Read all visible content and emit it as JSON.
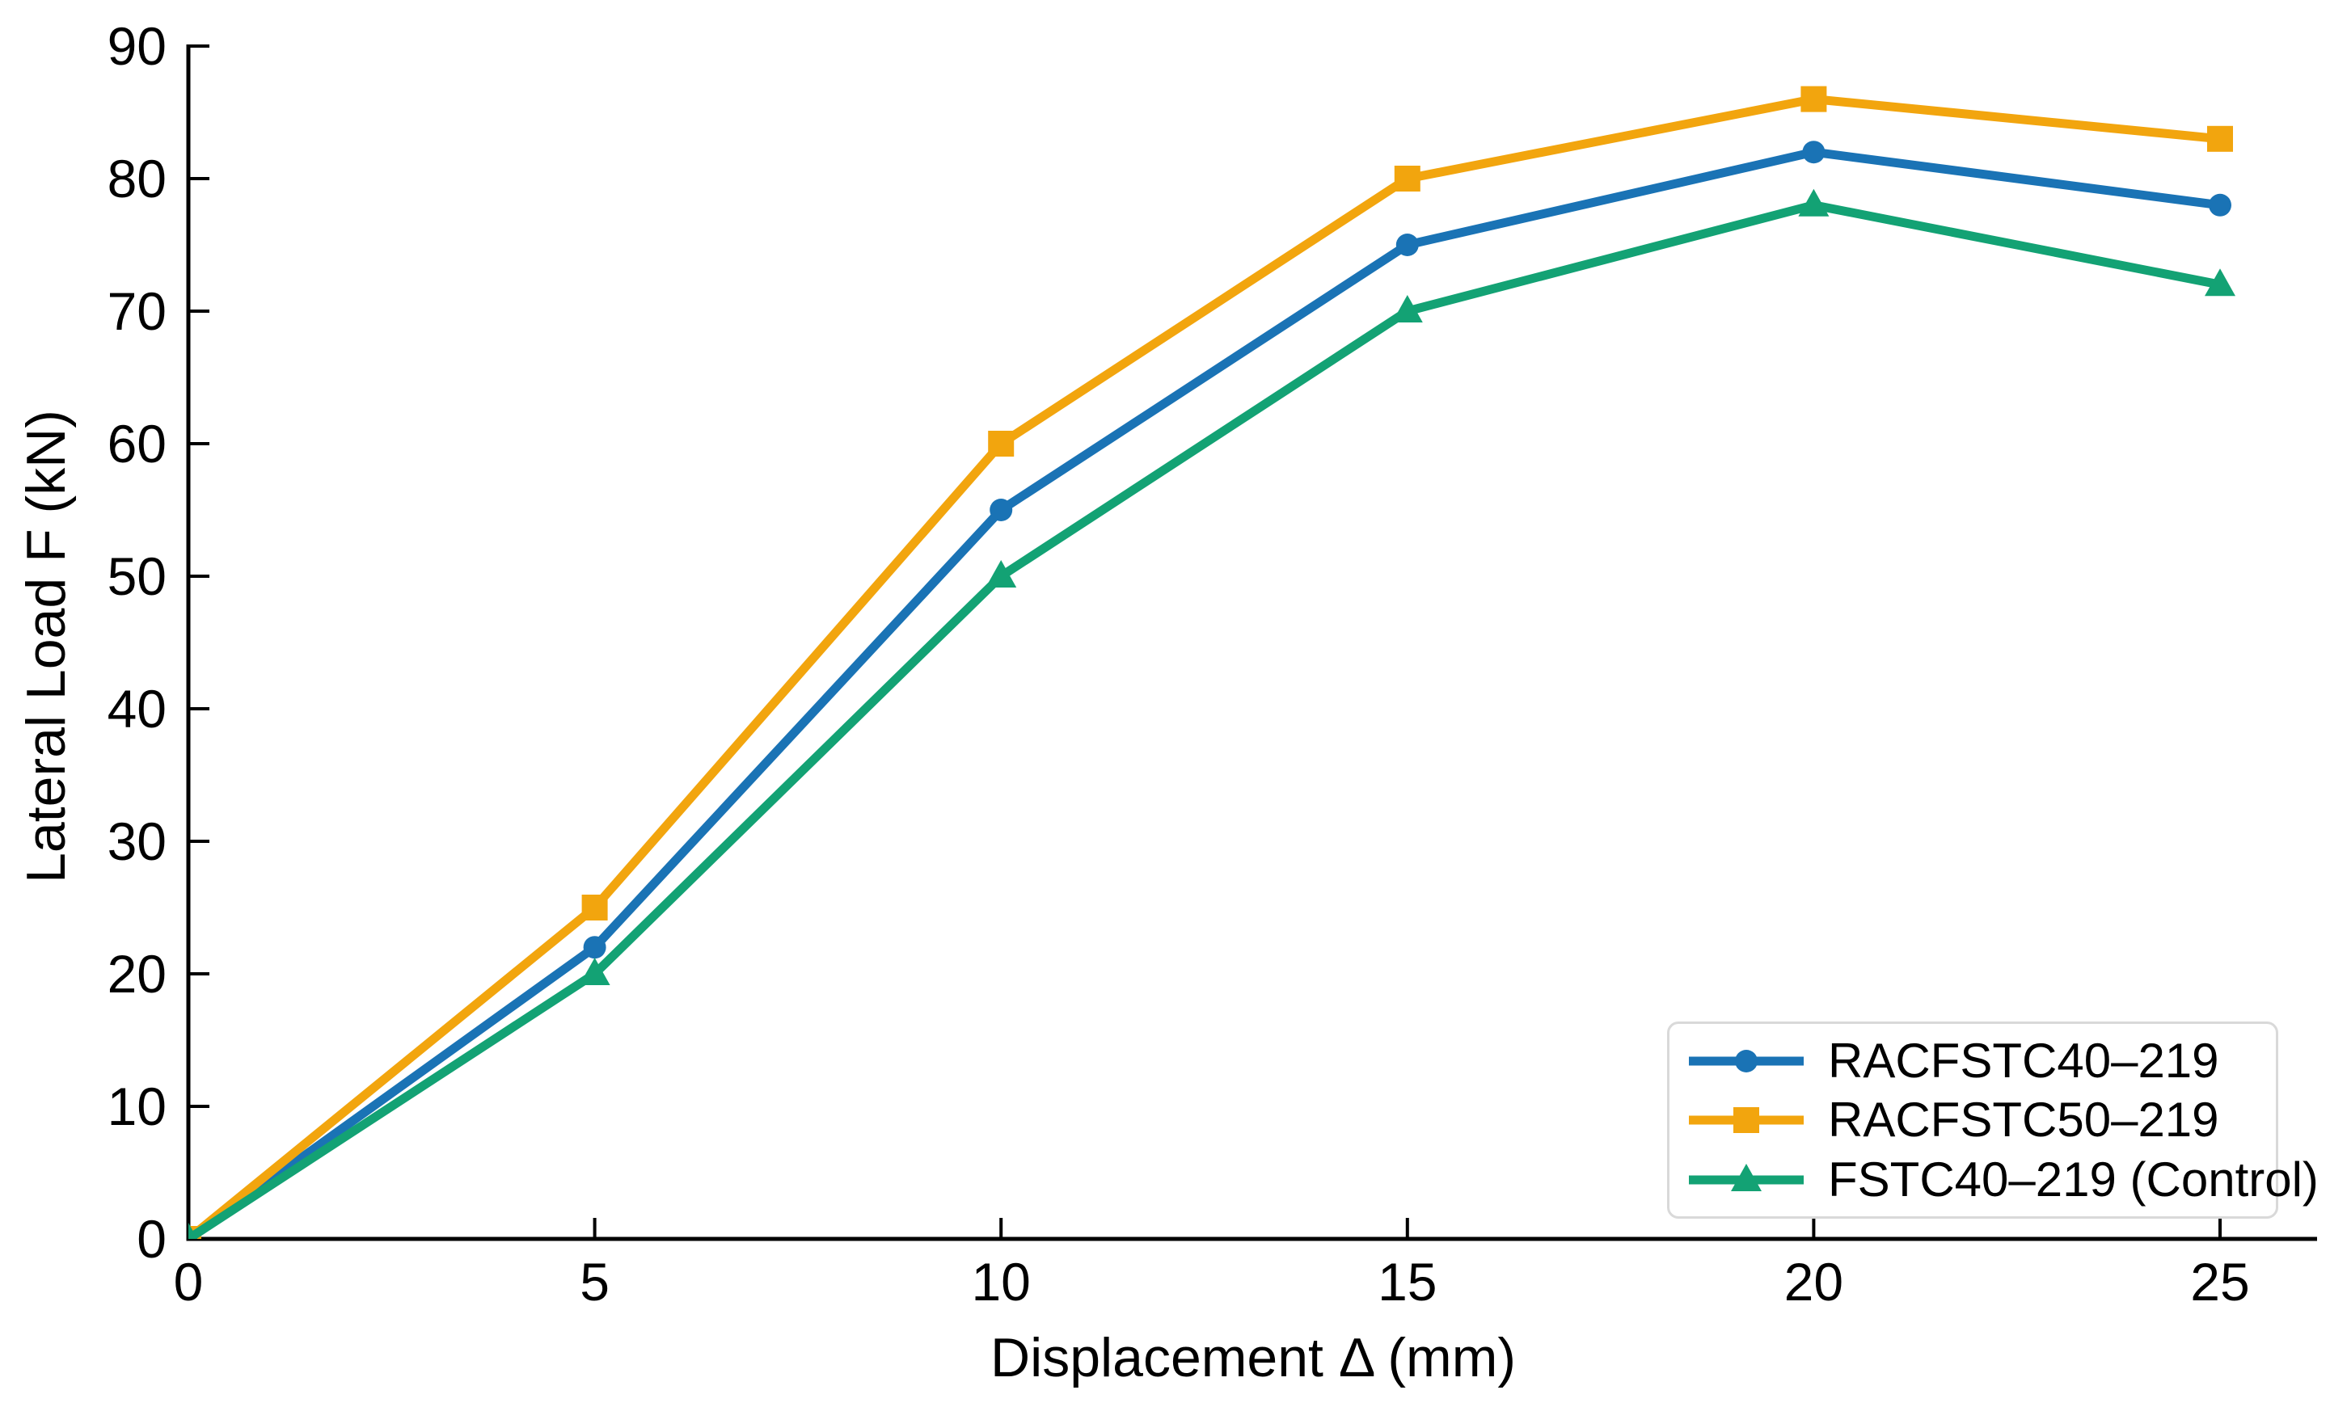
{
  "chart_data": {
    "type": "line",
    "title": "",
    "xlabel": "Displacement Δ (mm)",
    "ylabel": "Lateral Load F (kN)",
    "x": [
      0,
      5,
      10,
      15,
      20,
      25
    ],
    "x_ticks": [
      "0",
      "5",
      "10",
      "15",
      "20",
      "25"
    ],
    "y_ticks": [
      "0",
      "10",
      "20",
      "30",
      "40",
      "50",
      "60",
      "70",
      "80",
      "90"
    ],
    "y_tick_values": [
      0,
      10,
      20,
      30,
      40,
      50,
      60,
      70,
      80,
      90
    ],
    "x_tick_values": [
      0,
      5,
      10,
      15,
      20,
      25
    ],
    "xlim": [
      0,
      26.2
    ],
    "ylim": [
      0,
      90
    ],
    "grid": false,
    "legend_position": "lower right",
    "series": [
      {
        "name": "RACFSTC40–219",
        "marker": "circle",
        "color": "#1A73B5",
        "values": [
          0,
          22,
          55,
          75,
          82,
          78
        ]
      },
      {
        "name": "RACFSTC50–219",
        "marker": "square",
        "color": "#F2A50E",
        "values": [
          0,
          25,
          60,
          80,
          86,
          83
        ]
      },
      {
        "name": "FSTC40–219 (Control)",
        "marker": "triangle",
        "color": "#13A274",
        "values": [
          0,
          20,
          50,
          70,
          78,
          72
        ]
      }
    ]
  },
  "colors": {
    "background": "#FFFFFF",
    "axis": "#000000",
    "tick_text": "#000000",
    "legend_border": "#D9D9D9"
  }
}
